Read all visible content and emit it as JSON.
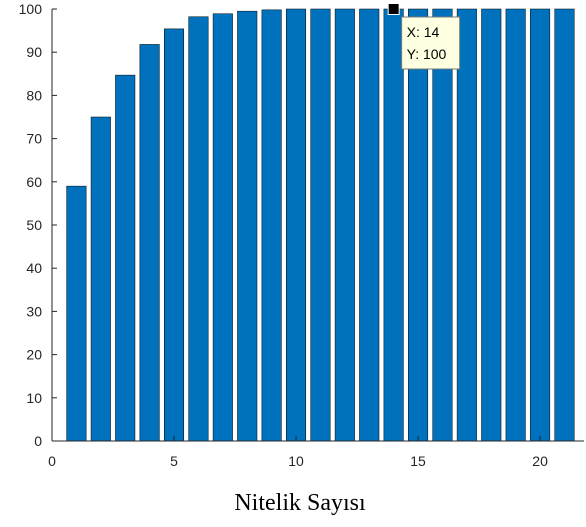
{
  "chart_data": {
    "type": "bar",
    "title": "",
    "xlabel": "Nitelik Sayısı",
    "ylabel": "",
    "x": [
      1,
      2,
      3,
      4,
      5,
      6,
      7,
      8,
      9,
      10,
      11,
      12,
      13,
      14,
      15,
      16,
      17,
      18,
      19,
      20,
      21
    ],
    "values": [
      59,
      75,
      84.7,
      91.8,
      95.4,
      98.2,
      98.9,
      99.5,
      99.8,
      100,
      100,
      100,
      100,
      100,
      100,
      100,
      100,
      100,
      100,
      100,
      100
    ],
    "xlim": [
      0,
      21.8
    ],
    "ylim": [
      0,
      100
    ],
    "xticks": [
      0,
      5,
      10,
      15,
      20
    ],
    "yticks": [
      0,
      10,
      20,
      30,
      40,
      50,
      60,
      70,
      80,
      90,
      100
    ],
    "grid": false,
    "bar_color": "#0072BD",
    "datatip": {
      "x_label": "X: 14",
      "y_label": "Y: 100",
      "x": 14,
      "y": 100
    }
  }
}
